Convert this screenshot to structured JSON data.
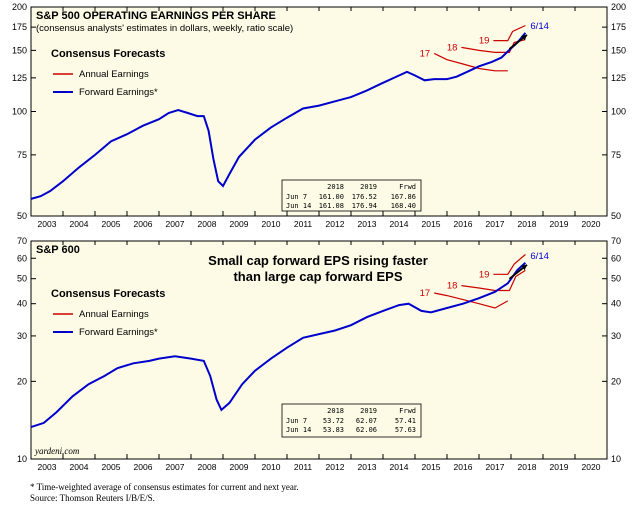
{
  "x_axis": {
    "year_labels": [
      "2003",
      "2004",
      "2005",
      "2006",
      "2007",
      "2008",
      "2009",
      "2010",
      "2011",
      "2012",
      "2013",
      "2014",
      "2015",
      "2016",
      "2017",
      "2018",
      "2019",
      "2020"
    ]
  },
  "chart_data": [
    {
      "type": "line",
      "title": "S&P 500 OPERATING EARNINGS PER SHARE",
      "subtitle": "(consensus analysts' estimates in dollars, weekly, ratio scale)",
      "legend_title": "Consensus Forecasts",
      "legend_position": "top-left",
      "yscale": "log",
      "ylim": [
        50,
        200
      ],
      "xlim": [
        2003,
        2021
      ],
      "ytick_labels": [
        "50",
        "75",
        "100",
        "125",
        "150",
        "175",
        "200"
      ],
      "grid": false,
      "series": [
        {
          "name": "Forward Earnings*",
          "color": "#0000cc",
          "points": [
            [
              2003.0,
              56
            ],
            [
              2003.3,
              57
            ],
            [
              2003.6,
              59
            ],
            [
              2004.0,
              63
            ],
            [
              2004.5,
              69
            ],
            [
              2005.0,
              75
            ],
            [
              2005.5,
              82
            ],
            [
              2006.0,
              86
            ],
            [
              2006.5,
              91
            ],
            [
              2007.0,
              95
            ],
            [
              2007.3,
              99
            ],
            [
              2007.6,
              101
            ],
            [
              2007.9,
              99
            ],
            [
              2008.2,
              97
            ],
            [
              2008.4,
              97
            ],
            [
              2008.55,
              88
            ],
            [
              2008.7,
              73
            ],
            [
              2008.85,
              63
            ],
            [
              2009.0,
              61
            ],
            [
              2009.2,
              66
            ],
            [
              2009.5,
              74
            ],
            [
              2010.0,
              83
            ],
            [
              2010.5,
              90
            ],
            [
              2011.0,
              96
            ],
            [
              2011.5,
              102
            ],
            [
              2012.0,
              104
            ],
            [
              2012.5,
              107
            ],
            [
              2013.0,
              110
            ],
            [
              2013.5,
              115
            ],
            [
              2014.0,
              121
            ],
            [
              2014.5,
              127
            ],
            [
              2014.75,
              130
            ],
            [
              2015.0,
              127
            ],
            [
              2015.3,
              123
            ],
            [
              2015.6,
              124
            ],
            [
              2016.0,
              124
            ],
            [
              2016.3,
              126
            ],
            [
              2016.7,
              131
            ],
            [
              2017.0,
              135
            ],
            [
              2017.4,
              139
            ],
            [
              2017.7,
              143
            ],
            [
              2018.0,
              152
            ],
            [
              2018.2,
              158
            ],
            [
              2018.45,
              168.4
            ]
          ]
        },
        {
          "name": "Annual Earnings",
          "color": "#cc0000",
          "segments": [
            {
              "label": "17",
              "points": [
                [
                  2015.6,
                  147
                ],
                [
                  2016.0,
                  141
                ],
                [
                  2016.5,
                  137
                ],
                [
                  2017.0,
                  133
                ],
                [
                  2017.5,
                  131
                ],
                [
                  2017.9,
                  131
                ]
              ]
            },
            {
              "label": "18",
              "points": [
                [
                  2016.45,
                  153
                ],
                [
                  2017.0,
                  150
                ],
                [
                  2017.5,
                  148
                ],
                [
                  2017.95,
                  148
                ],
                [
                  2018.1,
                  158
                ],
                [
                  2018.45,
                  161.1
                ]
              ]
            },
            {
              "label": "19",
              "points": [
                [
                  2017.45,
                  160
                ],
                [
                  2017.9,
                  160
                ],
                [
                  2018.05,
                  170
                ],
                [
                  2018.45,
                  176.9
                ]
              ]
            }
          ]
        }
      ],
      "annotations": [
        "6/14"
      ],
      "table": {
        "columns": [
          "",
          "2018",
          "2019",
          "Frwd"
        ],
        "rows": [
          [
            "Jun  7",
            "161.00",
            "176.52",
            "167.86"
          ],
          [
            "Jun 14",
            "161.08",
            "176.94",
            "168.40"
          ]
        ]
      }
    },
    {
      "type": "line",
      "title": "S&P 600",
      "callout": [
        "Small cap forward EPS rising faster",
        "than large cap forward EPS"
      ],
      "legend_title": "Consensus Forecasts",
      "legend_position": "top-left",
      "yscale": "log",
      "ylim": [
        10,
        70
      ],
      "xlim": [
        2003,
        2021
      ],
      "ytick_labels": [
        "10",
        "20",
        "30",
        "40",
        "50",
        "60",
        "70"
      ],
      "grid": false,
      "series": [
        {
          "name": "Forward Earnings*",
          "color": "#0000cc",
          "points": [
            [
              2003.0,
              13.3
            ],
            [
              2003.4,
              13.8
            ],
            [
              2003.8,
              15.2
            ],
            [
              2004.3,
              17.5
            ],
            [
              2004.8,
              19.5
            ],
            [
              2005.3,
              21.0
            ],
            [
              2005.7,
              22.5
            ],
            [
              2006.2,
              23.5
            ],
            [
              2006.7,
              24.0
            ],
            [
              2007.0,
              24.5
            ],
            [
              2007.5,
              25.0
            ],
            [
              2008.0,
              24.5
            ],
            [
              2008.4,
              24.0
            ],
            [
              2008.6,
              21.0
            ],
            [
              2008.8,
              17.0
            ],
            [
              2008.95,
              15.5
            ],
            [
              2009.2,
              16.5
            ],
            [
              2009.6,
              19.5
            ],
            [
              2010.0,
              22.0
            ],
            [
              2010.5,
              24.5
            ],
            [
              2011.0,
              27.0
            ],
            [
              2011.5,
              29.5
            ],
            [
              2012.0,
              30.5
            ],
            [
              2012.5,
              31.5
            ],
            [
              2013.0,
              33.0
            ],
            [
              2013.5,
              35.5
            ],
            [
              2014.0,
              37.5
            ],
            [
              2014.5,
              39.5
            ],
            [
              2014.8,
              40.0
            ],
            [
              2015.2,
              37.5
            ],
            [
              2015.5,
              37.0
            ],
            [
              2016.0,
              38.5
            ],
            [
              2016.5,
              40.0
            ],
            [
              2017.0,
              42.0
            ],
            [
              2017.5,
              44.5
            ],
            [
              2017.9,
              48.0
            ],
            [
              2018.2,
              54.0
            ],
            [
              2018.45,
              57.63
            ]
          ]
        },
        {
          "name": "Annual Earnings",
          "color": "#cc0000",
          "segments": [
            {
              "label": "17",
              "points": [
                [
                  2015.6,
                  44
                ],
                [
                  2016.0,
                  43
                ],
                [
                  2016.5,
                  41.5
                ],
                [
                  2017.0,
                  40
                ],
                [
                  2017.5,
                  38.5
                ],
                [
                  2017.9,
                  41
                ]
              ]
            },
            {
              "label": "18",
              "points": [
                [
                  2016.45,
                  47
                ],
                [
                  2017.0,
                  46
                ],
                [
                  2017.5,
                  45
                ],
                [
                  2017.95,
                  45
                ],
                [
                  2018.15,
                  51
                ],
                [
                  2018.45,
                  53.83
                ]
              ]
            },
            {
              "label": "19",
              "points": [
                [
                  2017.45,
                  52
                ],
                [
                  2017.9,
                  52
                ],
                [
                  2018.1,
                  57
                ],
                [
                  2018.45,
                  62.06
                ]
              ]
            }
          ]
        }
      ],
      "annotations": [
        "6/14"
      ],
      "table": {
        "columns": [
          "",
          "2018",
          "2019",
          "Frwd"
        ],
        "rows": [
          [
            "Jun  7",
            "53.72",
            "62.07",
            "57.41"
          ],
          [
            "Jun 14",
            "53.83",
            "62.06",
            "57.63"
          ]
        ]
      },
      "source_tag": "yardeni.com"
    }
  ],
  "footnotes": [
    "* Time-weighted average of consensus estimates for current and next year.",
    "Source: Thomson Reuters I/B/E/S."
  ]
}
